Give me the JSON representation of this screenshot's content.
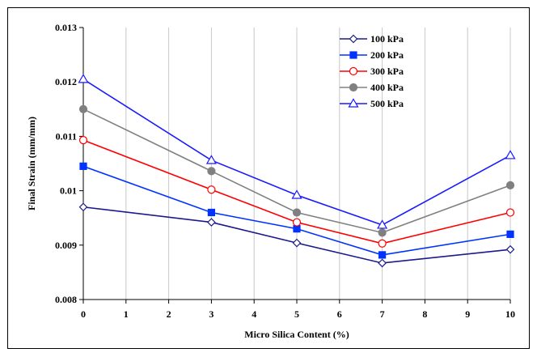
{
  "chart_data": {
    "type": "line",
    "xlabel": "Micro Silica Content (%)",
    "ylabel": "Final Strain (mm/mm)",
    "xlim": [
      0,
      10
    ],
    "ylim": [
      0.008,
      0.013
    ],
    "x_ticks": [
      0,
      1,
      2,
      3,
      4,
      5,
      6,
      7,
      8,
      9,
      10
    ],
    "x_tick_labels": [
      "0",
      "1",
      "2",
      "3",
      "4",
      "5",
      "6",
      "7",
      "8",
      "9",
      "10"
    ],
    "y_ticks": [
      0.008,
      0.009,
      0.01,
      0.011,
      0.012,
      0.013
    ],
    "y_tick_labels": [
      "0.008",
      "0.009",
      "0.01",
      "0.011",
      "0.012",
      "0.013"
    ],
    "grid": "vertical",
    "legend_position": "top-right",
    "x": [
      0,
      3,
      5,
      7,
      10
    ],
    "series": [
      {
        "name": "100 kPa",
        "color": "#1a1a8c",
        "marker": "diamond-open",
        "values": [
          0.0097,
          0.00942,
          0.00904,
          0.00867,
          0.00892
        ]
      },
      {
        "name": "200 kPa",
        "color": "#0033ff",
        "marker": "square-filled",
        "values": [
          0.01045,
          0.0096,
          0.0093,
          0.00882,
          0.0092
        ]
      },
      {
        "name": "300 kPa",
        "color": "#ff0000",
        "marker": "circle-open",
        "values": [
          0.01093,
          0.01002,
          0.00942,
          0.00903,
          0.0096
        ]
      },
      {
        "name": "400 kPa",
        "color": "#808080",
        "marker": "circle-filled",
        "values": [
          0.0115,
          0.01036,
          0.0096,
          0.00923,
          0.0101
        ]
      },
      {
        "name": "500 kPa",
        "color": "#1a1aff",
        "marker": "triangle-open",
        "values": [
          0.01205,
          0.01056,
          0.00992,
          0.00937,
          0.01065
        ]
      }
    ]
  }
}
